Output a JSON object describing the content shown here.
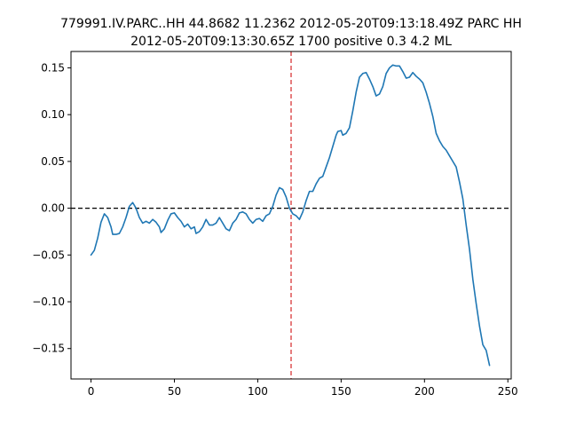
{
  "chart_data": {
    "type": "line",
    "title_lines": [
      "779991.IV.PARC..HH 44.8682 11.2362 2012-05-20T09:13:18.49Z PARC HH",
      "2012-05-20T09:13:30.65Z 1700 positive 0.3 4.2 ML"
    ],
    "xlabel": "",
    "ylabel": "",
    "xlim": [
      -12,
      252
    ],
    "ylim": [
      -0.1825,
      0.1675
    ],
    "x_ticks": [
      0,
      50,
      100,
      150,
      200,
      250
    ],
    "y_ticks": [
      -0.15,
      -0.1,
      -0.05,
      0.0,
      0.05,
      0.1,
      0.15
    ],
    "x_tick_labels": [
      "0",
      "50",
      "100",
      "150",
      "200",
      "250"
    ],
    "y_tick_labels": [
      "−0.15",
      "−0.10",
      "−0.05",
      "0.00",
      "0.05",
      "0.10",
      "0.15"
    ],
    "grid": false,
    "reference_lines": [
      {
        "orientation": "horizontal",
        "value": 0.0,
        "color": "#000000",
        "style": "dashed"
      },
      {
        "orientation": "vertical",
        "value": 120,
        "color": "#d62728",
        "style": "dashed"
      }
    ],
    "series": [
      {
        "color": "#1f77b4",
        "points": [
          [
            0,
            -0.05
          ],
          [
            2,
            -0.045
          ],
          [
            4,
            -0.032
          ],
          [
            6,
            -0.015
          ],
          [
            8,
            -0.006
          ],
          [
            10,
            -0.01
          ],
          [
            12,
            -0.02
          ],
          [
            13,
            -0.028
          ],
          [
            15,
            -0.028
          ],
          [
            17,
            -0.027
          ],
          [
            19,
            -0.02
          ],
          [
            21,
            -0.01
          ],
          [
            23,
            0.002
          ],
          [
            25,
            0.006
          ],
          [
            27,
            0.0
          ],
          [
            29,
            -0.01
          ],
          [
            31,
            -0.016
          ],
          [
            33,
            -0.014
          ],
          [
            35,
            -0.016
          ],
          [
            37,
            -0.012
          ],
          [
            39,
            -0.015
          ],
          [
            41,
            -0.02
          ],
          [
            42,
            -0.026
          ],
          [
            44,
            -0.022
          ],
          [
            46,
            -0.013
          ],
          [
            48,
            -0.006
          ],
          [
            50,
            -0.005
          ],
          [
            52,
            -0.01
          ],
          [
            54,
            -0.014
          ],
          [
            56,
            -0.02
          ],
          [
            58,
            -0.017
          ],
          [
            60,
            -0.022
          ],
          [
            62,
            -0.02
          ],
          [
            63,
            -0.027
          ],
          [
            65,
            -0.025
          ],
          [
            67,
            -0.02
          ],
          [
            69,
            -0.012
          ],
          [
            71,
            -0.018
          ],
          [
            73,
            -0.018
          ],
          [
            75,
            -0.016
          ],
          [
            77,
            -0.01
          ],
          [
            79,
            -0.016
          ],
          [
            81,
            -0.022
          ],
          [
            83,
            -0.024
          ],
          [
            85,
            -0.016
          ],
          [
            87,
            -0.012
          ],
          [
            89,
            -0.005
          ],
          [
            91,
            -0.004
          ],
          [
            93,
            -0.006
          ],
          [
            95,
            -0.012
          ],
          [
            97,
            -0.016
          ],
          [
            99,
            -0.012
          ],
          [
            101,
            -0.011
          ],
          [
            103,
            -0.014
          ],
          [
            105,
            -0.008
          ],
          [
            107,
            -0.006
          ],
          [
            109,
            0.002
          ],
          [
            111,
            0.014
          ],
          [
            113,
            0.022
          ],
          [
            115,
            0.02
          ],
          [
            117,
            0.012
          ],
          [
            119,
            0.0
          ],
          [
            121,
            -0.006
          ],
          [
            123,
            -0.008
          ],
          [
            125,
            -0.012
          ],
          [
            127,
            -0.004
          ],
          [
            129,
            0.008
          ],
          [
            131,
            0.018
          ],
          [
            133,
            0.018
          ],
          [
            135,
            0.026
          ],
          [
            137,
            0.032
          ],
          [
            139,
            0.034
          ],
          [
            141,
            0.044
          ],
          [
            143,
            0.054
          ],
          [
            145,
            0.066
          ],
          [
            147,
            0.078
          ],
          [
            148,
            0.082
          ],
          [
            150,
            0.083
          ],
          [
            151,
            0.078
          ],
          [
            153,
            0.08
          ],
          [
            155,
            0.086
          ],
          [
            157,
            0.104
          ],
          [
            159,
            0.124
          ],
          [
            161,
            0.14
          ],
          [
            163,
            0.144
          ],
          [
            165,
            0.145
          ],
          [
            167,
            0.138
          ],
          [
            169,
            0.13
          ],
          [
            171,
            0.12
          ],
          [
            173,
            0.122
          ],
          [
            175,
            0.13
          ],
          [
            177,
            0.144
          ],
          [
            179,
            0.15
          ],
          [
            181,
            0.153
          ],
          [
            183,
            0.152
          ],
          [
            185,
            0.152
          ],
          [
            187,
            0.146
          ],
          [
            189,
            0.139
          ],
          [
            191,
            0.14
          ],
          [
            193,
            0.145
          ],
          [
            195,
            0.141
          ],
          [
            197,
            0.138
          ],
          [
            199,
            0.134
          ],
          [
            201,
            0.124
          ],
          [
            203,
            0.112
          ],
          [
            205,
            0.098
          ],
          [
            207,
            0.08
          ],
          [
            209,
            0.072
          ],
          [
            211,
            0.066
          ],
          [
            213,
            0.062
          ],
          [
            215,
            0.056
          ],
          [
            217,
            0.05
          ],
          [
            219,
            0.044
          ],
          [
            221,
            0.028
          ],
          [
            223,
            0.01
          ],
          [
            225,
            -0.018
          ],
          [
            227,
            -0.044
          ],
          [
            229,
            -0.076
          ],
          [
            231,
            -0.102
          ],
          [
            233,
            -0.126
          ],
          [
            235,
            -0.146
          ],
          [
            237,
            -0.152
          ],
          [
            239,
            -0.168
          ]
        ]
      }
    ]
  }
}
